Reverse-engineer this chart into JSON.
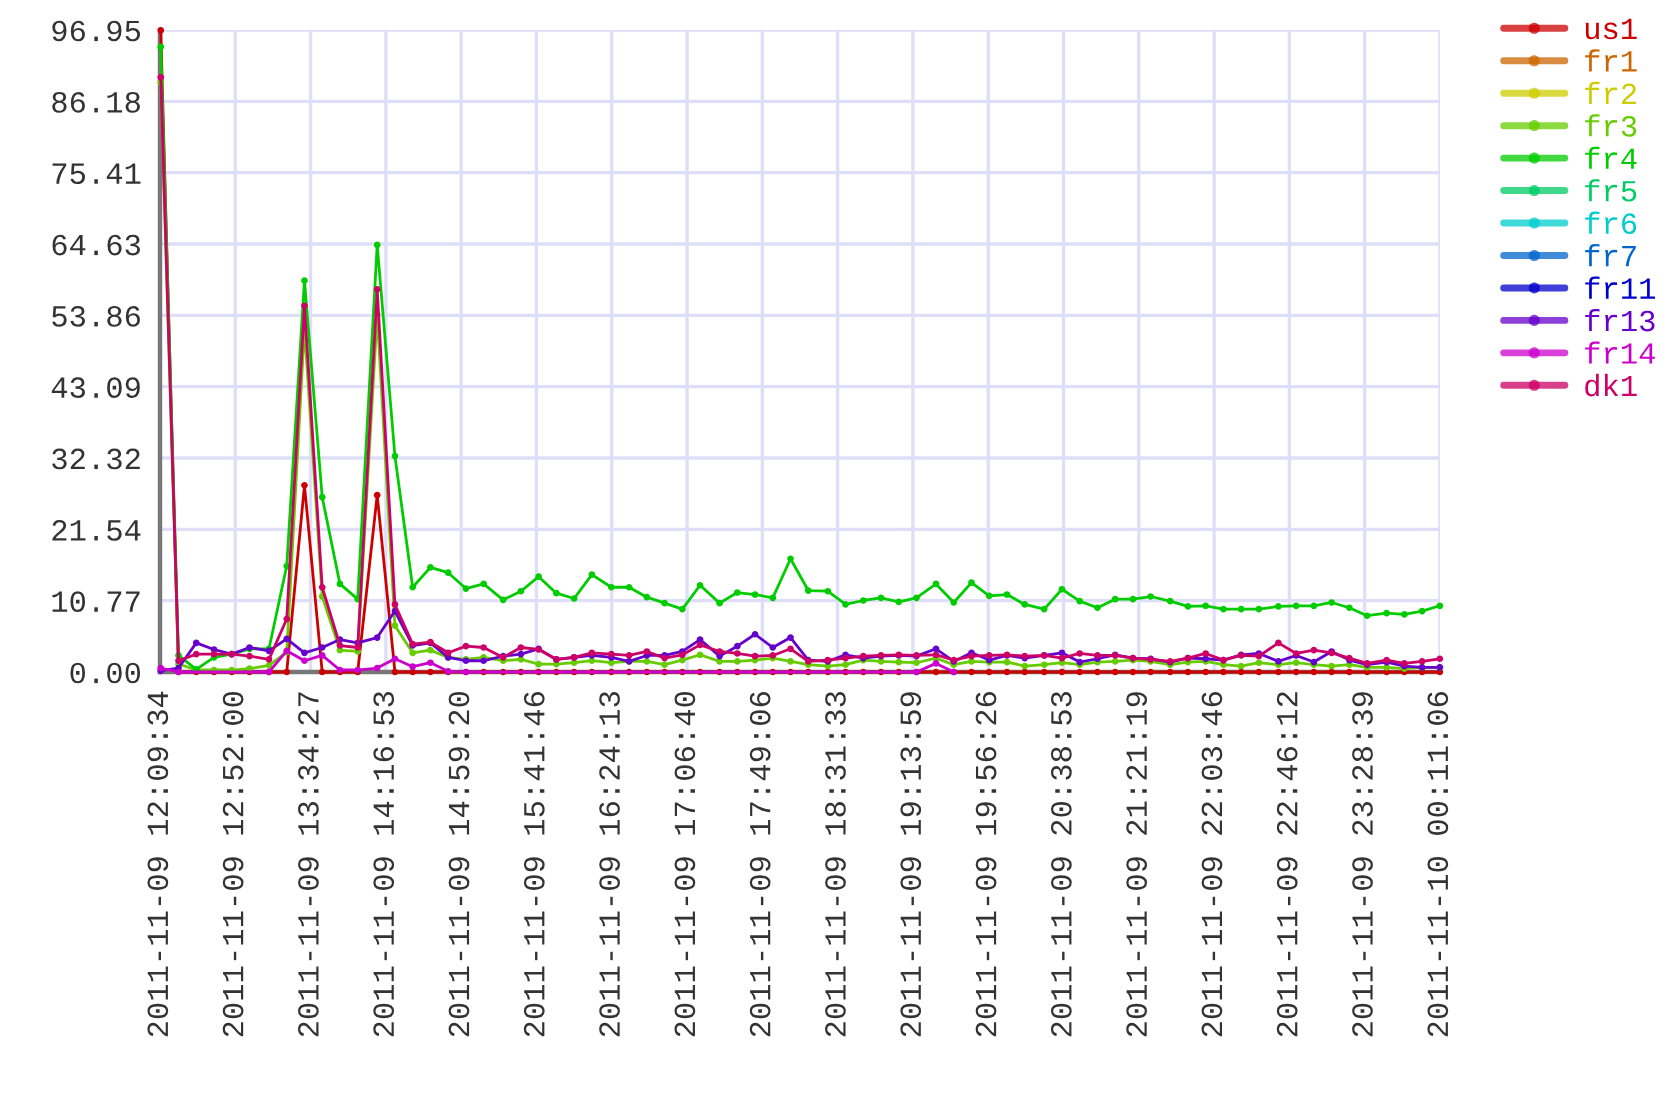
{
  "chart_data": {
    "type": "line",
    "x": [
      "2011-11-09T12:10",
      "2011-11-09T12:20",
      "2011-11-09T12:30",
      "2011-11-09T12:40",
      "2011-11-09T12:50",
      "2011-11-09T13:00",
      "2011-11-09T13:11",
      "2011-11-09T13:21",
      "2011-11-09T13:31",
      "2011-11-09T13:41",
      "2011-11-09T13:51",
      "2011-11-09T14:01",
      "2011-11-09T14:12",
      "2011-11-09T14:22",
      "2011-11-09T14:32",
      "2011-11-09T14:42",
      "2011-11-09T14:52",
      "2011-11-09T15:02",
      "2011-11-09T15:12",
      "2011-11-09T15:23",
      "2011-11-09T15:33",
      "2011-11-09T15:43",
      "2011-11-09T15:53",
      "2011-11-09T16:03",
      "2011-11-09T16:13",
      "2011-11-09T16:24",
      "2011-11-09T16:34",
      "2011-11-09T16:44",
      "2011-11-09T16:54",
      "2011-11-09T17:04",
      "2011-11-09T17:14",
      "2011-11-09T17:25",
      "2011-11-09T17:35",
      "2011-11-09T17:45",
      "2011-11-09T17:55",
      "2011-11-09T18:05",
      "2011-11-09T18:15",
      "2011-11-09T18:26",
      "2011-11-09T18:36",
      "2011-11-09T18:46",
      "2011-11-09T18:56",
      "2011-11-09T19:06",
      "2011-11-09T19:16",
      "2011-11-09T19:27",
      "2011-11-09T19:37",
      "2011-11-09T19:47",
      "2011-11-09T19:57",
      "2011-11-09T20:07",
      "2011-11-09T20:17",
      "2011-11-09T20:28",
      "2011-11-09T20:38",
      "2011-11-09T20:48",
      "2011-11-09T20:58",
      "2011-11-09T21:08",
      "2011-11-09T21:18",
      "2011-11-09T21:28",
      "2011-11-09T21:39",
      "2011-11-09T21:49",
      "2011-11-09T21:59",
      "2011-11-09T22:09",
      "2011-11-09T22:19",
      "2011-11-09T22:29",
      "2011-11-09T22:40",
      "2011-11-09T22:50",
      "2011-11-09T23:00",
      "2011-11-09T23:10",
      "2011-11-09T23:20",
      "2011-11-09T23:30",
      "2011-11-09T23:41",
      "2011-11-09T23:51",
      "2011-11-10T00:01",
      "2011-11-10T00:11"
    ],
    "xlim": [
      "2011-11-09T12:09:34",
      "2011-11-10T00:11:06"
    ],
    "xticks": [
      {
        "value": "2011-11-09T12:09:34",
        "label": "2011-11-09 12:09:34"
      },
      {
        "value": "2011-11-09T12:52:00",
        "label": "2011-11-09 12:52:00"
      },
      {
        "value": "2011-11-09T13:34:27",
        "label": "2011-11-09 13:34:27"
      },
      {
        "value": "2011-11-09T14:16:53",
        "label": "2011-11-09 14:16:53"
      },
      {
        "value": "2011-11-09T14:59:20",
        "label": "2011-11-09 14:59:20"
      },
      {
        "value": "2011-11-09T15:41:46",
        "label": "2011-11-09 15:41:46"
      },
      {
        "value": "2011-11-09T16:24:13",
        "label": "2011-11-09 16:24:13"
      },
      {
        "value": "2011-11-09T17:06:40",
        "label": "2011-11-09 17:06:40"
      },
      {
        "value": "2011-11-09T17:49:06",
        "label": "2011-11-09 17:49:06"
      },
      {
        "value": "2011-11-09T18:31:33",
        "label": "2011-11-09 18:31:33"
      },
      {
        "value": "2011-11-09T19:13:59",
        "label": "2011-11-09 19:13:59"
      },
      {
        "value": "2011-11-09T19:56:26",
        "label": "2011-11-09 19:56:26"
      },
      {
        "value": "2011-11-09T20:38:53",
        "label": "2011-11-09 20:38:53"
      },
      {
        "value": "2011-11-09T21:21:19",
        "label": "2011-11-09 21:21:19"
      },
      {
        "value": "2011-11-09T22:03:46",
        "label": "2011-11-09 22:03:46"
      },
      {
        "value": "2011-11-09T22:46:12",
        "label": "2011-11-09 22:46:12"
      },
      {
        "value": "2011-11-09T23:28:39",
        "label": "2011-11-09 23:28:39"
      },
      {
        "value": "2011-11-10T00:11:06",
        "label": "2011-11-10 00:11:06"
      }
    ],
    "ylim": [
      0,
      96.95
    ],
    "yticks": [
      {
        "value": 0,
        "label": "0.00"
      },
      10.77,
      21.54,
      32.32,
      43.09,
      53.86,
      64.63,
      75.41,
      86.18,
      96.95
    ],
    "grid": true,
    "legend": "top right",
    "marker": "circle",
    "line_style": "solid",
    "series": [
      {
        "name": "us1",
        "color": "#cc0000",
        "values": [
          96.9,
          0,
          0,
          0,
          0,
          0,
          0,
          0,
          28.2,
          0,
          0,
          0,
          26.7,
          0,
          0,
          0,
          0,
          0,
          0,
          0,
          0,
          0,
          0,
          0,
          0,
          0,
          0,
          0,
          0,
          0,
          0,
          0,
          0,
          0,
          0,
          0,
          0,
          0,
          0,
          0,
          0,
          0,
          0,
          0,
          0,
          0,
          0,
          0,
          0,
          0,
          0,
          0,
          0,
          0,
          0,
          0,
          0,
          0,
          0,
          0,
          0,
          0,
          0,
          0,
          0,
          0,
          0,
          0,
          0,
          0,
          0,
          0
        ]
      },
      {
        "name": "fr1",
        "color": "#cc6600",
        "values": [
          null,
          null,
          null,
          null,
          null,
          null,
          null,
          null,
          null,
          null,
          null,
          null,
          null,
          null,
          null,
          null,
          null,
          null,
          null,
          null,
          null,
          null,
          null,
          null,
          null,
          null,
          null,
          null,
          null,
          null,
          null,
          null,
          null,
          null,
          null,
          null,
          null,
          null,
          null,
          null,
          null,
          null,
          null,
          null,
          null,
          null,
          null,
          null,
          null,
          null,
          null,
          null,
          null,
          null,
          null,
          null,
          null,
          null,
          null,
          null,
          null,
          null,
          null,
          null,
          null,
          null,
          null,
          null,
          null,
          null,
          null,
          null
        ]
      },
      {
        "name": "fr2",
        "color": "#cccc00",
        "values": [
          null,
          null,
          null,
          null,
          null,
          null,
          null,
          null,
          null,
          null,
          null,
          null,
          null,
          null,
          null,
          null,
          null,
          null,
          null,
          null,
          null,
          null,
          null,
          null,
          null,
          null,
          null,
          null,
          null,
          null,
          null,
          null,
          null,
          null,
          null,
          null,
          null,
          null,
          null,
          null,
          null,
          null,
          null,
          null,
          null,
          null,
          null,
          null,
          null,
          null,
          null,
          null,
          null,
          null,
          null,
          null,
          null,
          null,
          null,
          null,
          null,
          null,
          null,
          null,
          null,
          null,
          null,
          null,
          null,
          null,
          null,
          null
        ]
      },
      {
        "name": "fr3",
        "color": "#66cc00",
        "values": [
          89.0,
          1.2,
          0.3,
          0.3,
          0.3,
          0.5,
          1.0,
          3.0,
          52.0,
          11.4,
          3.3,
          3.1,
          54.0,
          7.0,
          2.9,
          3.3,
          2.2,
          1.9,
          2.2,
          1.7,
          1.9,
          1.2,
          1.2,
          1.4,
          1.7,
          1.4,
          1.6,
          1.6,
          1.1,
          1.8,
          2.6,
          1.6,
          1.6,
          1.8,
          2.1,
          1.6,
          1.1,
          0.9,
          1.1,
          1.8,
          1.6,
          1.5,
          1.4,
          2.1,
          1.1,
          1.6,
          1.5,
          1.5,
          0.9,
          1.1,
          1.4,
          1.1,
          1.5,
          1.6,
          1.8,
          1.6,
          1.1,
          1.5,
          1.6,
          1.1,
          0.9,
          1.4,
          1.1,
          1.4,
          1.1,
          0.9,
          1.1,
          0.7,
          0.7,
          0.5,
          0.7,
          0.7
        ]
      },
      {
        "name": "fr4",
        "color": "#00cc00",
        "values": [
          94.4,
          2.5,
          0.4,
          2.2,
          2.7,
          3.5,
          3.5,
          16.0,
          59.1,
          26.4,
          13.3,
          11.0,
          64.5,
          32.6,
          12.8,
          15.8,
          15.0,
          12.6,
          13.3,
          10.9,
          12.2,
          14.4,
          11.9,
          11.1,
          14.7,
          12.8,
          12.8,
          11.3,
          10.4,
          9.5,
          13.1,
          10.4,
          12.0,
          11.7,
          11.2,
          17.1,
          12.3,
          12.2,
          10.2,
          10.8,
          11.2,
          10.6,
          11.2,
          13.3,
          10.5,
          13.5,
          11.5,
          11.7,
          10.2,
          9.5,
          12.5,
          10.7,
          9.7,
          11.0,
          11.0,
          11.4,
          10.7,
          9.9,
          10.0,
          9.5,
          9.5,
          9.5,
          9.9,
          10.0,
          10.0,
          10.5,
          9.7,
          8.5,
          8.9,
          8.7,
          9.2,
          10.0
        ]
      },
      {
        "name": "fr5",
        "color": "#00cc66",
        "values": [
          null,
          null,
          null,
          null,
          null,
          null,
          null,
          null,
          null,
          null,
          null,
          null,
          null,
          null,
          null,
          null,
          null,
          null,
          null,
          null,
          null,
          null,
          null,
          null,
          null,
          null,
          null,
          null,
          null,
          null,
          null,
          null,
          null,
          null,
          null,
          null,
          null,
          null,
          null,
          null,
          null,
          null,
          null,
          null,
          null,
          null,
          null,
          null,
          null,
          null,
          null,
          null,
          null,
          null,
          null,
          null,
          null,
          null,
          null,
          null,
          null,
          null,
          null,
          null,
          null,
          null,
          null,
          null,
          null,
          null,
          null,
          null
        ]
      },
      {
        "name": "fr6",
        "color": "#00cccc",
        "values": [
          null,
          null,
          null,
          null,
          null,
          null,
          null,
          null,
          null,
          null,
          null,
          null,
          null,
          null,
          null,
          null,
          null,
          null,
          null,
          null,
          null,
          null,
          null,
          null,
          null,
          null,
          null,
          null,
          null,
          null,
          null,
          null,
          null,
          null,
          null,
          null,
          null,
          null,
          null,
          null,
          null,
          null,
          null,
          null,
          null,
          null,
          null,
          null,
          null,
          null,
          null,
          null,
          null,
          null,
          null,
          null,
          null,
          null,
          null,
          null,
          null,
          null,
          null,
          null,
          null,
          null,
          null,
          null,
          null,
          null,
          null,
          null
        ]
      },
      {
        "name": "fr7",
        "color": "#0066cc",
        "values": [
          null,
          null,
          null,
          null,
          null,
          null,
          null,
          null,
          null,
          null,
          null,
          null,
          null,
          null,
          null,
          null,
          null,
          null,
          null,
          null,
          null,
          null,
          null,
          null,
          null,
          null,
          null,
          null,
          null,
          null,
          null,
          null,
          null,
          null,
          null,
          null,
          null,
          null,
          null,
          null,
          null,
          null,
          null,
          null,
          null,
          null,
          null,
          null,
          null,
          null,
          null,
          null,
          null,
          null,
          null,
          null,
          null,
          null,
          null,
          null,
          null,
          null,
          null,
          null,
          null,
          null,
          null,
          null,
          null,
          null,
          null,
          null
        ]
      },
      {
        "name": "fr11",
        "color": "#0000cc",
        "values": [
          null,
          null,
          null,
          null,
          null,
          null,
          null,
          null,
          null,
          null,
          null,
          null,
          null,
          null,
          null,
          null,
          null,
          null,
          null,
          null,
          null,
          null,
          null,
          null,
          null,
          null,
          null,
          null,
          null,
          null,
          null,
          null,
          null,
          null,
          null,
          null,
          null,
          null,
          null,
          null,
          null,
          null,
          null,
          null,
          null,
          null,
          null,
          null,
          null,
          null,
          null,
          null,
          null,
          null,
          null,
          null,
          null,
          null,
          null,
          null,
          null,
          null,
          null,
          null,
          null,
          null,
          null,
          null,
          null,
          null,
          null,
          null
        ]
      },
      {
        "name": "fr13",
        "color": "#6600cc",
        "values": [
          0.2,
          0.6,
          4.4,
          3.4,
          2.7,
          3.7,
          3.2,
          5.0,
          2.9,
          3.7,
          4.9,
          4.4,
          5.2,
          9.2,
          4.0,
          4.4,
          2.2,
          1.7,
          1.7,
          2.4,
          2.7,
          3.5,
          1.9,
          2.2,
          2.5,
          2.2,
          1.6,
          2.5,
          2.5,
          3.1,
          4.9,
          2.4,
          3.9,
          5.7,
          3.7,
          5.2,
          1.8,
          1.6,
          2.6,
          2.1,
          2.4,
          2.5,
          2.4,
          3.5,
          1.6,
          2.9,
          1.8,
          2.5,
          2.1,
          2.5,
          2.9,
          1.5,
          2.0,
          2.6,
          2.1,
          2.0,
          1.5,
          2.1,
          2.0,
          1.8,
          2.6,
          2.8,
          1.6,
          2.5,
          1.5,
          3.1,
          1.8,
          1.1,
          1.5,
          0.9,
          0.7,
          0.7
        ]
      },
      {
        "name": "fr14",
        "color": "#cc00cc",
        "values": [
          0.6,
          0,
          null,
          null,
          null,
          null,
          0,
          3.2,
          1.7,
          2.5,
          0.3,
          0.3,
          0.6,
          2.0,
          0.8,
          1.4,
          0.1,
          0,
          null,
          null,
          null,
          null,
          null,
          null,
          null,
          null,
          null,
          null,
          null,
          null,
          null,
          null,
          null,
          null,
          null,
          null,
          null,
          null,
          null,
          null,
          null,
          null,
          0,
          1.3,
          0,
          null,
          null,
          null,
          null,
          null,
          null,
          null,
          null,
          null,
          null,
          null,
          null,
          null,
          null,
          null,
          null,
          null,
          null,
          null,
          null,
          null,
          null,
          null,
          null,
          null,
          null,
          null
        ]
      },
      {
        "name": "dk1",
        "color": "#cc0066",
        "values": [
          89.8,
          1.7,
          2.7,
          2.7,
          2.7,
          2.4,
          1.9,
          8.0,
          55.3,
          12.8,
          4.0,
          3.7,
          57.8,
          10.2,
          4.2,
          4.5,
          2.9,
          3.9,
          3.7,
          2.2,
          3.7,
          3.4,
          1.9,
          2.2,
          2.9,
          2.7,
          2.5,
          3.1,
          2.1,
          2.6,
          4.1,
          3.1,
          2.8,
          2.4,
          2.5,
          3.5,
          1.6,
          1.8,
          2.1,
          2.4,
          2.5,
          2.6,
          2.5,
          2.6,
          1.8,
          2.4,
          2.5,
          2.6,
          2.4,
          2.5,
          2.1,
          2.8,
          2.5,
          2.5,
          2.1,
          1.9,
          1.6,
          2.1,
          2.8,
          1.8,
          2.5,
          2.4,
          4.4,
          2.8,
          3.3,
          2.9,
          2.1,
          1.3,
          1.8,
          1.3,
          1.6,
          2.0
        ]
      }
    ]
  }
}
